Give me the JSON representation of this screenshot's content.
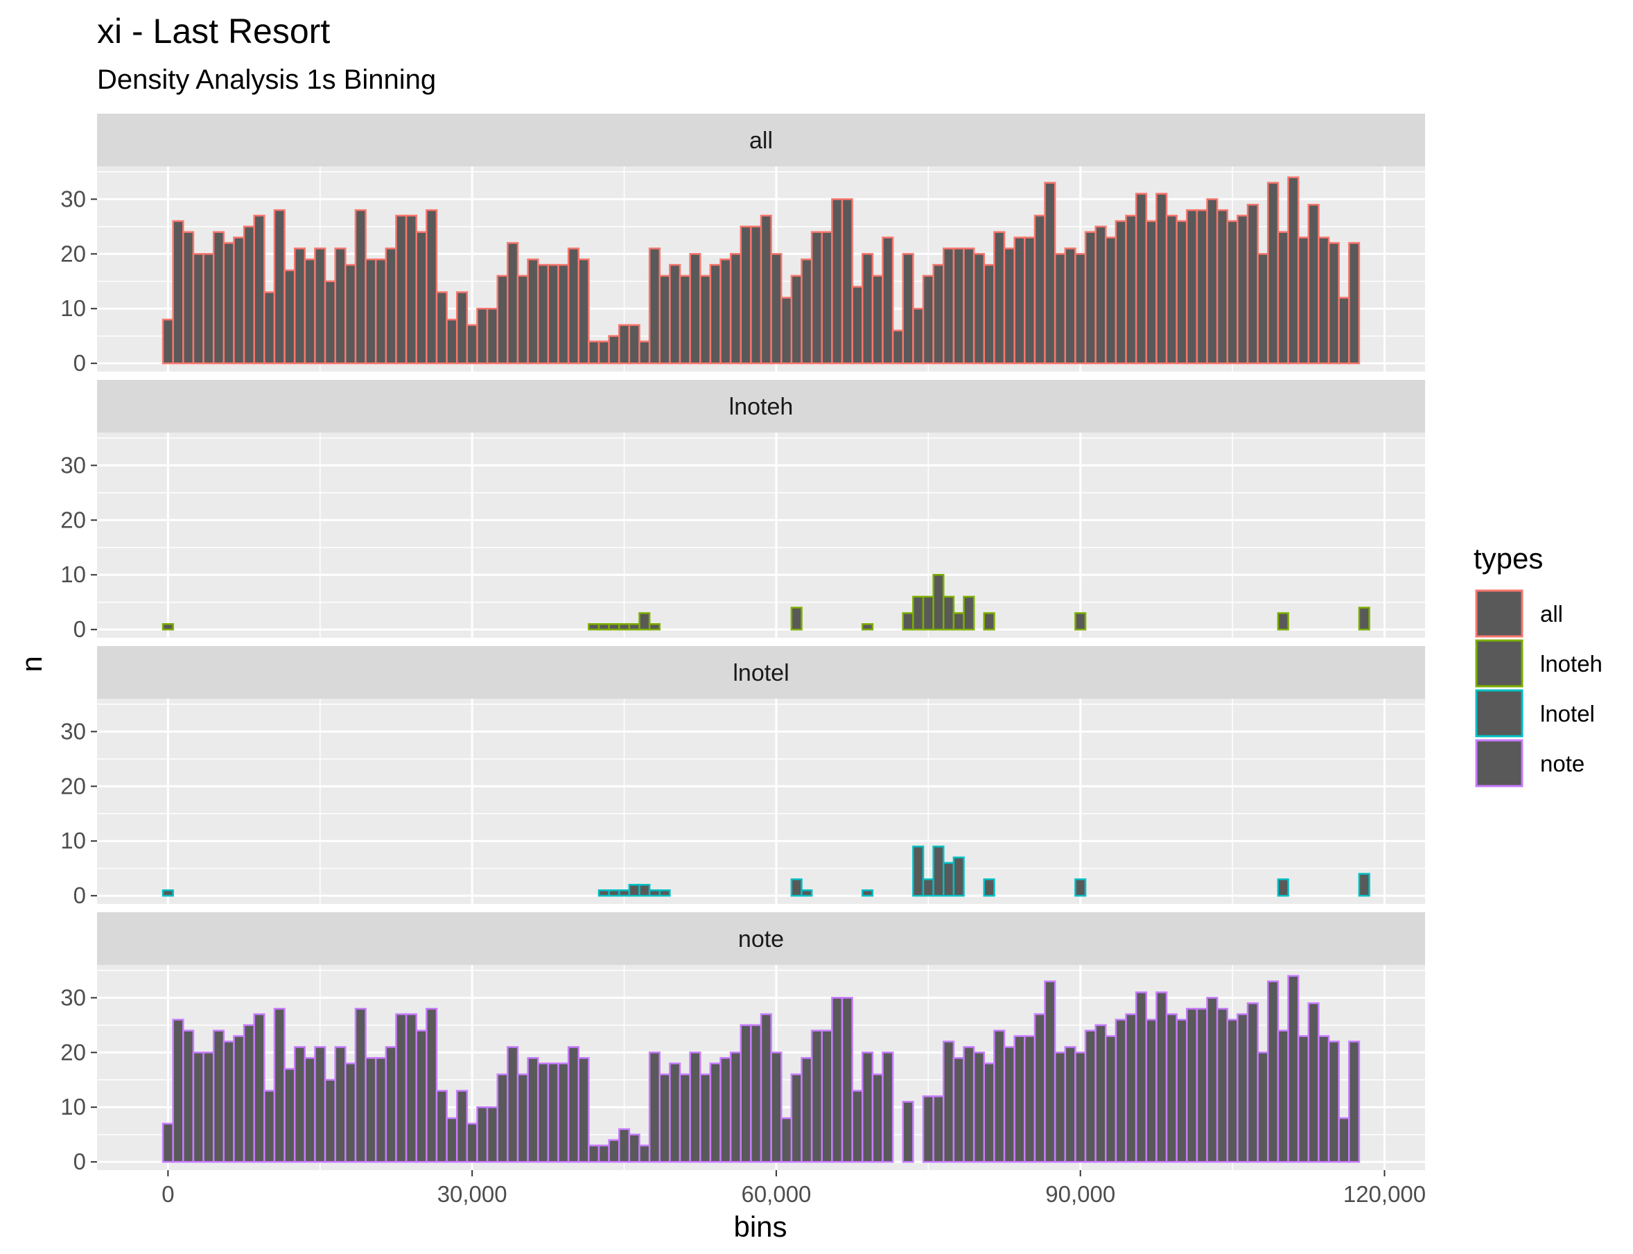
{
  "chart_data": {
    "type": "bar",
    "title": "xi - Last Resort",
    "subtitle": "Density Analysis 1s Binning",
    "xlabel": "bins",
    "ylabel": "n",
    "xlim": [
      -7000,
      124000
    ],
    "ylim": [
      -1.5,
      36
    ],
    "bin_width": 1000,
    "x_ticks": [
      0,
      30000,
      60000,
      90000,
      120000
    ],
    "x_tick_labels": [
      "0",
      "30,000",
      "60,000",
      "90,000",
      "120,000"
    ],
    "y_ticks": [
      0,
      10,
      20,
      30
    ],
    "y_tick_labels": [
      "0",
      "10",
      "20",
      "30"
    ],
    "grid": true,
    "bar_fill": "#595959",
    "legend": {
      "title": "types",
      "position": "right",
      "entries": [
        {
          "label": "all",
          "color": "#F8766D"
        },
        {
          "label": "lnoteh",
          "color": "#7CAE00"
        },
        {
          "label": "lnotel",
          "color": "#00BFC4"
        },
        {
          "label": "note",
          "color": "#C77CFF"
        }
      ]
    },
    "panels": [
      {
        "name": "all",
        "color": "#F8766D",
        "x_start": 0,
        "values": [
          8,
          26,
          24,
          20,
          20,
          24,
          22,
          23,
          25,
          27,
          13,
          28,
          17,
          21,
          19,
          21,
          15,
          21,
          18,
          28,
          19,
          19,
          21,
          27,
          27,
          24,
          28,
          13,
          8,
          13,
          7,
          10,
          10,
          16,
          22,
          16,
          19,
          18,
          18,
          18,
          21,
          19,
          4,
          4,
          5,
          7,
          7,
          4,
          21,
          16,
          18,
          16,
          20,
          16,
          18,
          19,
          20,
          25,
          25,
          27,
          20,
          12,
          16,
          19,
          24,
          24,
          30,
          30,
          14,
          20,
          16,
          23,
          6,
          20,
          10,
          16,
          18,
          21,
          21,
          21,
          20,
          18,
          24,
          21,
          23,
          23,
          27,
          33,
          20,
          21,
          20,
          24,
          25,
          23,
          26,
          27,
          31,
          26,
          31,
          27,
          26,
          28,
          28,
          30,
          28,
          26,
          27,
          29,
          20,
          33,
          24,
          34,
          23,
          29,
          23,
          22,
          12,
          22
        ]
      },
      {
        "name": "lnoteh",
        "color": "#7CAE00",
        "x_start": 0,
        "values": [
          1,
          0,
          0,
          0,
          0,
          0,
          0,
          0,
          0,
          0,
          0,
          0,
          0,
          0,
          0,
          0,
          0,
          0,
          0,
          0,
          0,
          0,
          0,
          0,
          0,
          0,
          0,
          0,
          0,
          0,
          0,
          0,
          0,
          0,
          0,
          0,
          0,
          0,
          0,
          0,
          0,
          0,
          1,
          1,
          1,
          1,
          1,
          3,
          1,
          0,
          0,
          0,
          0,
          0,
          0,
          0,
          0,
          0,
          0,
          0,
          0,
          0,
          4,
          0,
          0,
          0,
          0,
          0,
          0,
          1,
          0,
          0,
          0,
          3,
          6,
          6,
          10,
          6,
          3,
          6,
          0,
          3,
          0,
          0,
          0,
          0,
          0,
          0,
          0,
          0,
          3,
          0,
          0,
          0,
          0,
          0,
          0,
          0,
          0,
          0,
          0,
          0,
          0,
          0,
          0,
          0,
          0,
          0,
          0,
          0,
          3,
          0,
          0,
          0,
          0,
          0,
          0,
          0,
          4
        ]
      },
      {
        "name": "lnotel",
        "color": "#00BFC4",
        "x_start": 0,
        "values": [
          1,
          0,
          0,
          0,
          0,
          0,
          0,
          0,
          0,
          0,
          0,
          0,
          0,
          0,
          0,
          0,
          0,
          0,
          0,
          0,
          0,
          0,
          0,
          0,
          0,
          0,
          0,
          0,
          0,
          0,
          0,
          0,
          0,
          0,
          0,
          0,
          0,
          0,
          0,
          0,
          0,
          0,
          0,
          1,
          1,
          1,
          2,
          2,
          1,
          1,
          0,
          0,
          0,
          0,
          0,
          0,
          0,
          0,
          0,
          0,
          0,
          0,
          3,
          1,
          0,
          0,
          0,
          0,
          0,
          1,
          0,
          0,
          0,
          0,
          9,
          3,
          9,
          6,
          7,
          0,
          0,
          3,
          0,
          0,
          0,
          0,
          0,
          0,
          0,
          0,
          3,
          0,
          0,
          0,
          0,
          0,
          0,
          0,
          0,
          0,
          0,
          0,
          0,
          0,
          0,
          0,
          0,
          0,
          0,
          0,
          3,
          0,
          0,
          0,
          0,
          0,
          0,
          0,
          4
        ]
      },
      {
        "name": "note",
        "color": "#C77CFF",
        "x_start": 0,
        "values": [
          7,
          26,
          24,
          20,
          20,
          24,
          22,
          23,
          25,
          27,
          13,
          28,
          17,
          21,
          19,
          21,
          15,
          21,
          18,
          28,
          19,
          19,
          21,
          27,
          27,
          24,
          28,
          13,
          8,
          13,
          7,
          10,
          10,
          16,
          21,
          16,
          19,
          18,
          18,
          18,
          21,
          19,
          3,
          3,
          4,
          6,
          5,
          3,
          20,
          16,
          18,
          16,
          20,
          16,
          18,
          19,
          20,
          25,
          25,
          27,
          20,
          8,
          16,
          19,
          24,
          24,
          30,
          30,
          13,
          20,
          16,
          20,
          0,
          11,
          0,
          12,
          12,
          22,
          19,
          21,
          20,
          18,
          24,
          21,
          23,
          23,
          27,
          33,
          20,
          21,
          20,
          24,
          25,
          23,
          26,
          27,
          31,
          26,
          31,
          27,
          26,
          28,
          28,
          30,
          28,
          26,
          27,
          29,
          20,
          33,
          24,
          34,
          23,
          29,
          23,
          22,
          8,
          22
        ]
      }
    ]
  }
}
